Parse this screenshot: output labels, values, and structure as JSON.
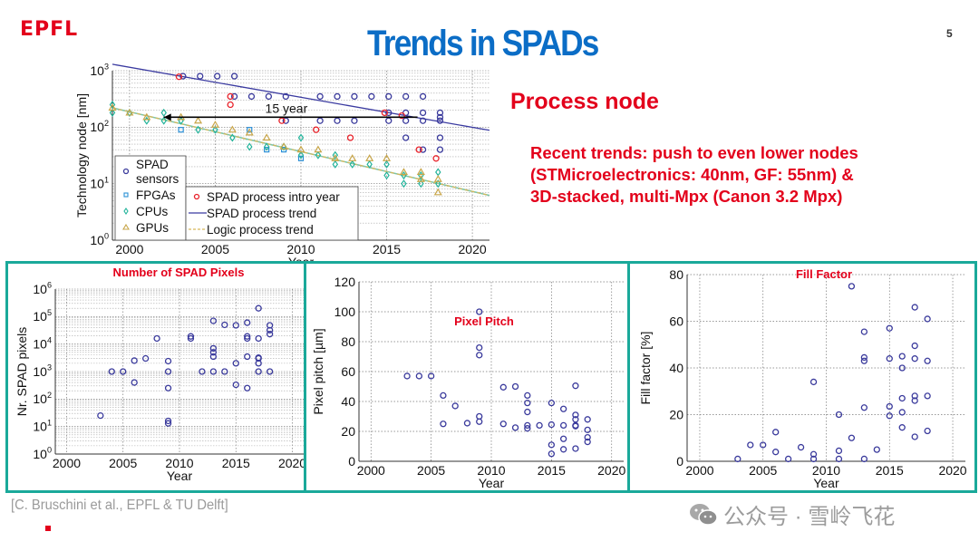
{
  "slide": {
    "logo": "EPFL",
    "title": "Trends in SPADs",
    "page_number": "5",
    "process_heading": "Process node",
    "process_text": [
      "Recent trends: push to even lower nodes",
      "(STMicroelectronics: 40nm, GF: 55nm) &",
      "3D-stacked, multi-Mpx (Canon 3.2 Mpx)"
    ],
    "citation": "[C. Bruschini et al., EPFL & TU Delft]",
    "watermark": "公众号 · 雪岭飞花",
    "colors": {
      "accent_red": "#e3001b",
      "title_blue": "#0b6dc6",
      "panel_border": "#1aa99a",
      "spad": "#3a3a9c",
      "fpga": "#2a8fd6",
      "cpu": "#22b39a",
      "gpu": "#c8a64a",
      "intro": "#e8222a"
    }
  },
  "chart_data": [
    {
      "id": "technology-node",
      "type": "scatter",
      "title": "",
      "xlabel": "Year",
      "ylabel": "Technology node [nm]",
      "xlim": [
        1999,
        2021
      ],
      "ylim": [
        1,
        1000
      ],
      "yscale": "log",
      "grid": true,
      "xticks": [
        "2000",
        "2005",
        "2010",
        "2015",
        "2020"
      ],
      "yticks": [
        "10^0",
        "10^1",
        "10^2",
        "10^3"
      ],
      "annotation": "15 year",
      "legend": [
        "SPAD sensors",
        "FPGAs",
        "CPUs",
        "GPUs",
        "SPAD process intro year",
        "SPAD process trend",
        "Logic process trend"
      ],
      "legend_position": "bottom-left",
      "series": [
        {
          "name": "SPAD sensors",
          "marker": "circle",
          "points": [
            [
              2003,
              800
            ],
            [
              2004,
              800
            ],
            [
              2005,
              800
            ],
            [
              2006,
              800
            ],
            [
              2006,
              350
            ],
            [
              2007,
              350
            ],
            [
              2008,
              350
            ],
            [
              2009,
              350
            ],
            [
              2009,
              130
            ],
            [
              2011,
              350
            ],
            [
              2011,
              130
            ],
            [
              2012,
              350
            ],
            [
              2012,
              130
            ],
            [
              2013,
              350
            ],
            [
              2013,
              130
            ],
            [
              2014,
              350
            ],
            [
              2015,
              350
            ],
            [
              2015,
              130
            ],
            [
              2015,
              180
            ],
            [
              2016,
              350
            ],
            [
              2016,
              180
            ],
            [
              2016,
              130
            ],
            [
              2016,
              65
            ],
            [
              2017,
              350
            ],
            [
              2017,
              180
            ],
            [
              2017,
              130
            ],
            [
              2017,
              40
            ],
            [
              2018,
              180
            ],
            [
              2018,
              150
            ],
            [
              2018,
              130
            ],
            [
              2018,
              65
            ],
            [
              2018,
              40
            ]
          ]
        },
        {
          "name": "FPGAs",
          "marker": "square",
          "points": [
            [
              2003,
              90
            ],
            [
              2007,
              90
            ],
            [
              2008,
              40
            ],
            [
              2009,
              40
            ],
            [
              2010,
              28
            ]
          ]
        },
        {
          "name": "CPUs",
          "marker": "diamond",
          "points": [
            [
              1999,
              250
            ],
            [
              1999,
              180
            ],
            [
              2000,
              180
            ],
            [
              2001,
              130
            ],
            [
              2002,
              180
            ],
            [
              2002,
              130
            ],
            [
              2003,
              130
            ],
            [
              2004,
              90
            ],
            [
              2005,
              90
            ],
            [
              2006,
              65
            ],
            [
              2007,
              45
            ],
            [
              2008,
              45
            ],
            [
              2009,
              45
            ],
            [
              2010,
              65
            ],
            [
              2010,
              32
            ],
            [
              2011,
              32
            ],
            [
              2012,
              22
            ],
            [
              2012,
              32
            ],
            [
              2013,
              22
            ],
            [
              2014,
              22
            ],
            [
              2015,
              22
            ],
            [
              2015,
              14
            ],
            [
              2016,
              14
            ],
            [
              2016,
              10
            ],
            [
              2017,
              14
            ],
            [
              2017,
              10
            ],
            [
              2018,
              16
            ],
            [
              2018,
              10
            ]
          ]
        },
        {
          "name": "GPUs",
          "marker": "triangle",
          "points": [
            [
              1999,
              220
            ],
            [
              2000,
              180
            ],
            [
              2001,
              150
            ],
            [
              2003,
              150
            ],
            [
              2004,
              130
            ],
            [
              2005,
              110
            ],
            [
              2006,
              90
            ],
            [
              2007,
              80
            ],
            [
              2008,
              65
            ],
            [
              2009,
              45
            ],
            [
              2010,
              40
            ],
            [
              2011,
              40
            ],
            [
              2012,
              28
            ],
            [
              2013,
              28
            ],
            [
              2014,
              28
            ],
            [
              2015,
              28
            ],
            [
              2016,
              16
            ],
            [
              2017,
              16
            ],
            [
              2017,
              12
            ],
            [
              2018,
              12
            ],
            [
              2018,
              7
            ]
          ]
        },
        {
          "name": "SPAD process intro year",
          "marker": "circle",
          "points": [
            [
              2003,
              780
            ],
            [
              2006,
              350
            ],
            [
              2006,
              250
            ],
            [
              2009,
              130
            ],
            [
              2011,
              90
            ],
            [
              2013,
              65
            ],
            [
              2015,
              180
            ],
            [
              2016,
              160
            ],
            [
              2017,
              40
            ],
            [
              2018,
              28
            ]
          ]
        }
      ],
      "trend_lines": [
        {
          "name": "SPAD process trend",
          "from": [
            1999,
            1300
          ],
          "to": [
            2021,
            88
          ]
        },
        {
          "name": "Logic process trend",
          "from": [
            1999,
            220
          ],
          "to": [
            2021,
            6.2
          ]
        }
      ]
    },
    {
      "id": "spad-pixels",
      "type": "scatter",
      "title": "Number of SPAD Pixels",
      "xlabel": "Year",
      "ylabel": "Nr. SPAD pixels",
      "xlim": [
        1999,
        2021
      ],
      "ylim": [
        1,
        1000000
      ],
      "yscale": "log",
      "grid": true,
      "xticks": [
        "2000",
        "2005",
        "2010",
        "2015",
        "2020"
      ],
      "yticks": [
        "10^0",
        "10^1",
        "10^2",
        "10^3",
        "10^4",
        "10^5",
        "10^6"
      ],
      "points": [
        [
          2003,
          25
        ],
        [
          2004,
          1000
        ],
        [
          2005,
          1000
        ],
        [
          2006,
          2500
        ],
        [
          2006,
          400
        ],
        [
          2007,
          3000
        ],
        [
          2008,
          16000
        ],
        [
          2009,
          2400
        ],
        [
          2009,
          1000
        ],
        [
          2009,
          250
        ],
        [
          2009,
          16
        ],
        [
          2009,
          13
        ],
        [
          2011,
          19000
        ],
        [
          2011,
          16000
        ],
        [
          2012,
          1000
        ],
        [
          2013,
          70000
        ],
        [
          2013,
          7000
        ],
        [
          2013,
          5000
        ],
        [
          2013,
          3500
        ],
        [
          2013,
          1000
        ],
        [
          2014,
          50000
        ],
        [
          2014,
          1000
        ],
        [
          2015,
          48000
        ],
        [
          2015,
          2000
        ],
        [
          2015,
          330
        ],
        [
          2016,
          60000
        ],
        [
          2016,
          19000
        ],
        [
          2016,
          16000
        ],
        [
          2016,
          3500
        ],
        [
          2016,
          250
        ],
        [
          2017,
          200000
        ],
        [
          2017,
          16000
        ],
        [
          2017,
          3200
        ],
        [
          2017,
          3000
        ],
        [
          2017,
          2000
        ],
        [
          2017,
          1000
        ],
        [
          2018,
          48000
        ],
        [
          2018,
          32000
        ],
        [
          2018,
          23000
        ],
        [
          2018,
          1000
        ]
      ]
    },
    {
      "id": "pixel-pitch",
      "type": "scatter",
      "title": "Pixel Pitch",
      "xlabel": "Year",
      "ylabel": "Pixel pitch [µm]",
      "xlim": [
        1999,
        2021
      ],
      "ylim": [
        0,
        120
      ],
      "grid": true,
      "xticks": [
        "2000",
        "2005",
        "2010",
        "2015",
        "2020"
      ],
      "yticks": [
        "0",
        "20",
        "40",
        "60",
        "80",
        "100",
        "120"
      ],
      "points": [
        [
          2003,
          57
        ],
        [
          2004,
          57
        ],
        [
          2005,
          57
        ],
        [
          2006,
          44
        ],
        [
          2006,
          25
        ],
        [
          2007,
          37
        ],
        [
          2008,
          25.5
        ],
        [
          2009,
          100
        ],
        [
          2009,
          76
        ],
        [
          2009,
          71
        ],
        [
          2009,
          30
        ],
        [
          2009,
          26.5
        ],
        [
          2011,
          49.5
        ],
        [
          2011,
          25
        ],
        [
          2012,
          50
        ],
        [
          2012,
          22.5
        ],
        [
          2013,
          44
        ],
        [
          2013,
          39
        ],
        [
          2013,
          33
        ],
        [
          2013,
          24
        ],
        [
          2013,
          22
        ],
        [
          2014,
          24
        ],
        [
          2015,
          39
        ],
        [
          2015,
          24.5
        ],
        [
          2015,
          11
        ],
        [
          2015,
          5
        ],
        [
          2016,
          35
        ],
        [
          2016,
          24
        ],
        [
          2016,
          15
        ],
        [
          2016,
          8
        ],
        [
          2017,
          50.5
        ],
        [
          2017,
          31
        ],
        [
          2017,
          28
        ],
        [
          2017,
          24
        ],
        [
          2017,
          23.5
        ],
        [
          2017,
          8.5
        ],
        [
          2018,
          28
        ],
        [
          2018,
          21
        ],
        [
          2018,
          16
        ],
        [
          2018,
          13
        ]
      ]
    },
    {
      "id": "fill-factor",
      "type": "scatter",
      "title": "Fill Factor",
      "xlabel": "Year",
      "ylabel": "Fill factor [%]",
      "xlim": [
        1999,
        2021
      ],
      "ylim": [
        0,
        80
      ],
      "grid": true,
      "xticks": [
        "2000",
        "2005",
        "2010",
        "2015",
        "2020"
      ],
      "yticks": [
        "0",
        "20",
        "40",
        "60",
        "80"
      ],
      "points": [
        [
          2003,
          1
        ],
        [
          2004,
          7
        ],
        [
          2005,
          7
        ],
        [
          2006,
          12.5
        ],
        [
          2006,
          4
        ],
        [
          2007,
          1
        ],
        [
          2008,
          6
        ],
        [
          2009,
          34
        ],
        [
          2009,
          3
        ],
        [
          2009,
          1
        ],
        [
          2011,
          20
        ],
        [
          2011,
          4.5
        ],
        [
          2011,
          1
        ],
        [
          2012,
          75
        ],
        [
          2012,
          10
        ],
        [
          2013,
          55.5
        ],
        [
          2013,
          44.5
        ],
        [
          2013,
          43
        ],
        [
          2013,
          23
        ],
        [
          2013,
          1
        ],
        [
          2014,
          5
        ],
        [
          2015,
          57
        ],
        [
          2015,
          44
        ],
        [
          2015,
          23.5
        ],
        [
          2015,
          19.5
        ],
        [
          2016,
          45
        ],
        [
          2016,
          40
        ],
        [
          2016,
          27
        ],
        [
          2016,
          21
        ],
        [
          2016,
          14.5
        ],
        [
          2017,
          66
        ],
        [
          2017,
          49.5
        ],
        [
          2017,
          44
        ],
        [
          2017,
          28
        ],
        [
          2017,
          26
        ],
        [
          2017,
          10.5
        ],
        [
          2018,
          61
        ],
        [
          2018,
          43
        ],
        [
          2018,
          28
        ],
        [
          2018,
          13
        ]
      ]
    }
  ]
}
